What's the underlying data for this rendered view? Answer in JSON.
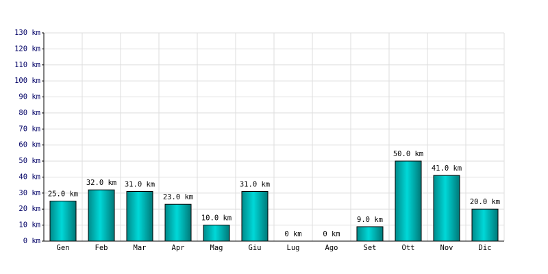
{
  "chart_data": {
    "type": "bar",
    "categories": [
      "Gen",
      "Feb",
      "Mar",
      "Apr",
      "Mag",
      "Giu",
      "Lug",
      "Ago",
      "Set",
      "Ott",
      "Nov",
      "Dic"
    ],
    "values": [
      25,
      32,
      31,
      23,
      10,
      31,
      0,
      0,
      9,
      50,
      41,
      20
    ],
    "value_labels": [
      "25.0 km",
      "32.0 km",
      "31.0 km",
      "23.0 km",
      "10.0 km",
      "31.0 km",
      "0 km",
      "0 km",
      "9.0 km",
      "50.0 km",
      "41.0 km",
      "20.0 km"
    ],
    "color": "#00d8d8",
    "ylim": [
      0,
      130
    ],
    "yticks": [
      {
        "value": 0,
        "label": "0 km"
      },
      {
        "value": 10,
        "label": "10 km"
      },
      {
        "value": 20,
        "label": "20 km"
      },
      {
        "value": 30,
        "label": "30 km"
      },
      {
        "value": 40,
        "label": "40 km"
      },
      {
        "value": 50,
        "label": "50 km"
      },
      {
        "value": 60,
        "label": "60 km"
      },
      {
        "value": 70,
        "label": "70 km"
      },
      {
        "value": 80,
        "label": "80 km"
      },
      {
        "value": 90,
        "label": "90 km"
      },
      {
        "value": 100,
        "label": "100 km"
      },
      {
        "value": 110,
        "label": "110 km"
      },
      {
        "value": 120,
        "label": "120 km"
      },
      {
        "value": 130,
        "label": "130 km"
      }
    ],
    "grid": true
  }
}
